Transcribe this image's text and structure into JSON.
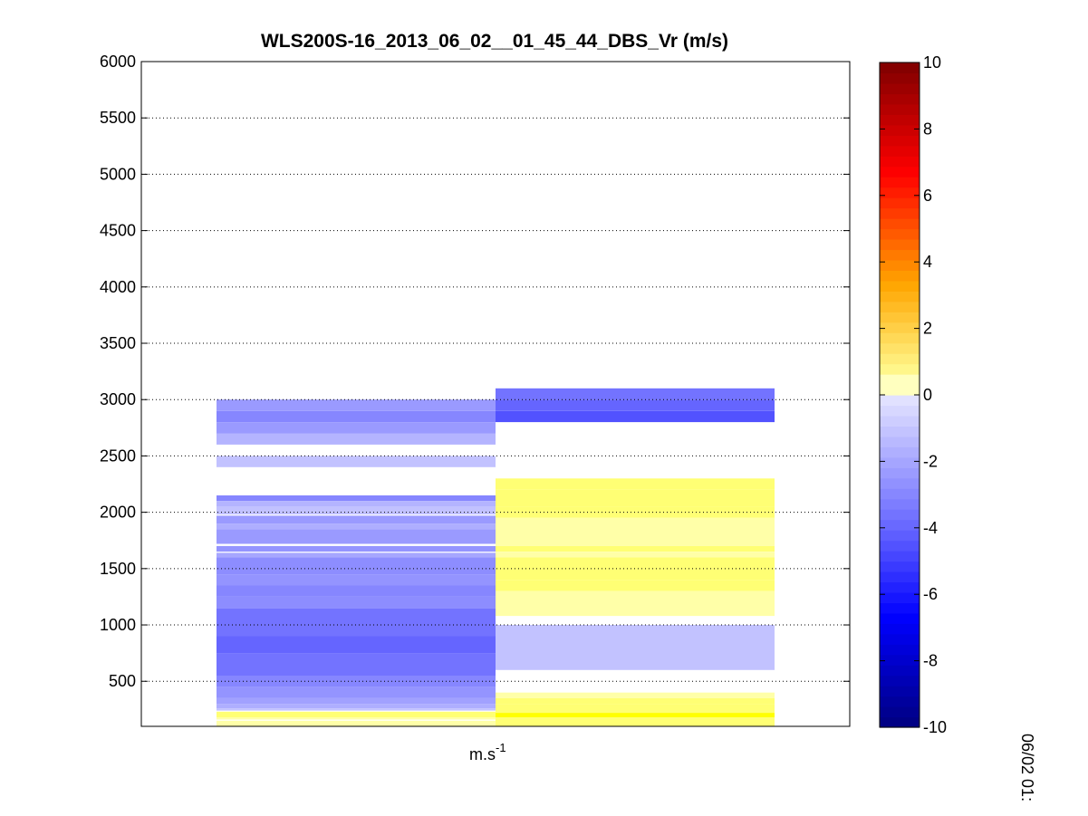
{
  "chart_data": {
    "type": "heatmap",
    "title": "WLS200S-16_2013_06_02__01_45_44_DBS_Vr (m/s)",
    "xlabel": "m.s",
    "xlabel_superscript": "-1",
    "side_label": "06/02 01:",
    "ylim": [
      100,
      6000
    ],
    "yticks": [
      500,
      1000,
      1500,
      2000,
      2500,
      3000,
      3500,
      4000,
      4500,
      5000,
      5500,
      6000
    ],
    "grid": true,
    "colorbar": {
      "range": [
        -10,
        10
      ],
      "ticks": [
        -10,
        -8,
        -6,
        -4,
        -2,
        0,
        2,
        4,
        6,
        8,
        10
      ],
      "colormap": "blue-white-yellow-red"
    },
    "columns": [
      {
        "x_range": [
          0,
          1
        ],
        "cells": [
          {
            "from": 2900,
            "to": 3000,
            "value": -1.0
          },
          {
            "from": 2800,
            "to": 2900,
            "value": -1.3
          },
          {
            "from": 2700,
            "to": 2800,
            "value": -1.0
          },
          {
            "from": 2600,
            "to": 2700,
            "value": -0.6
          },
          {
            "from": 2400,
            "to": 2500,
            "value": -0.4
          },
          {
            "from": 2100,
            "to": 2150,
            "value": -1.3
          },
          {
            "from": 2050,
            "to": 2100,
            "value": -0.6
          },
          {
            "from": 1980,
            "to": 2050,
            "value": -0.4
          },
          {
            "from": 1900,
            "to": 1970,
            "value": -1.0
          },
          {
            "from": 1850,
            "to": 1900,
            "value": -0.7
          },
          {
            "from": 1720,
            "to": 1850,
            "value": -1.0
          },
          {
            "from": 1650,
            "to": 1700,
            "value": -1.1
          },
          {
            "from": 1600,
            "to": 1640,
            "value": -0.8
          },
          {
            "from": 1450,
            "to": 1600,
            "value": -1.2
          },
          {
            "from": 1350,
            "to": 1450,
            "value": -1.1
          },
          {
            "from": 1250,
            "to": 1350,
            "value": -1.3
          },
          {
            "from": 1150,
            "to": 1250,
            "value": -1.2
          },
          {
            "from": 900,
            "to": 1150,
            "value": -1.6
          },
          {
            "from": 750,
            "to": 900,
            "value": -1.8
          },
          {
            "from": 550,
            "to": 750,
            "value": -1.6
          },
          {
            "from": 450,
            "to": 550,
            "value": -1.3
          },
          {
            "from": 350,
            "to": 450,
            "value": -1.1
          },
          {
            "from": 300,
            "to": 350,
            "value": -0.9
          },
          {
            "from": 260,
            "to": 300,
            "value": -0.7
          },
          {
            "from": 240,
            "to": 260,
            "value": -0.4
          },
          {
            "from": 180,
            "to": 230,
            "value": 0.7
          },
          {
            "from": 160,
            "to": 180,
            "value": 0.3
          },
          {
            "from": 120,
            "to": 150,
            "value": 0.4
          },
          {
            "from": 100,
            "to": 120,
            "value": 0.3
          }
        ]
      },
      {
        "x_range": [
          1,
          2
        ],
        "cells": [
          {
            "from": 3000,
            "to": 3100,
            "value": -1.6
          },
          {
            "from": 2900,
            "to": 3000,
            "value": -1.8
          },
          {
            "from": 2800,
            "to": 2900,
            "value": -2.1
          },
          {
            "from": 2200,
            "to": 2300,
            "value": 0.6
          },
          {
            "from": 2050,
            "to": 2200,
            "value": 0.7
          },
          {
            "from": 2000,
            "to": 2050,
            "value": 0.5
          },
          {
            "from": 1950,
            "to": 2000,
            "value": 0.7
          },
          {
            "from": 1700,
            "to": 1950,
            "value": 0.4
          },
          {
            "from": 1650,
            "to": 1700,
            "value": 0.6
          },
          {
            "from": 1600,
            "to": 1650,
            "value": 0.4
          },
          {
            "from": 1400,
            "to": 1600,
            "value": 0.7
          },
          {
            "from": 1350,
            "to": 1400,
            "value": 0.5
          },
          {
            "from": 1300,
            "to": 1350,
            "value": 0.7
          },
          {
            "from": 1080,
            "to": 1300,
            "value": 0.4
          },
          {
            "from": 600,
            "to": 1000,
            "value": -0.4
          },
          {
            "from": 350,
            "to": 400,
            "value": 0.4
          },
          {
            "from": 300,
            "to": 350,
            "value": 0.6
          },
          {
            "from": 220,
            "to": 300,
            "value": 0.7
          },
          {
            "from": 180,
            "to": 220,
            "value": 1.0
          },
          {
            "from": 140,
            "to": 180,
            "value": 0.7
          },
          {
            "from": 100,
            "to": 140,
            "value": 0.6
          }
        ]
      }
    ]
  }
}
